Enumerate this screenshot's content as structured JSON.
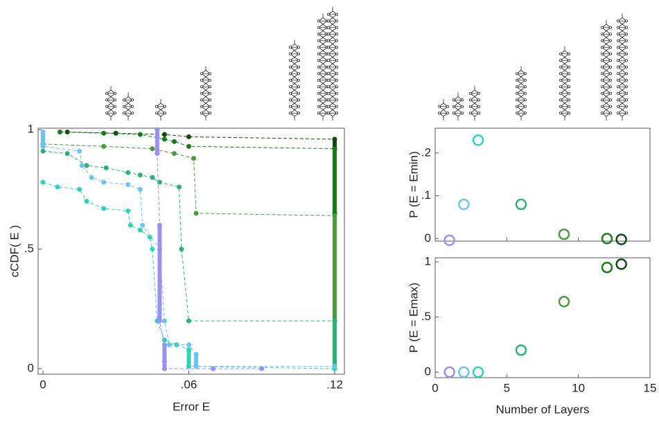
{
  "chart_data": [
    {
      "type": "line",
      "ylabel": "cCDF( E )",
      "xlabel": "Error E",
      "xlim": [
        -0.002,
        0.124
      ],
      "ylim": [
        -0.023,
        1.006
      ],
      "xticks": [
        0,
        {
          "value": 0.06,
          "label": ".06"
        },
        {
          "value": 0.12,
          "label": ".12"
        }
      ],
      "yticks": [
        0,
        {
          "value": 0.5,
          "label": ".5"
        },
        1
      ],
      "series": [
        {
          "color": "#0e4a0e",
          "x": [
            0.01,
            0.03,
            0.05,
            0.06,
            0.12,
            0.12
          ],
          "values": [
            0.99,
            0.985,
            0.98,
            0.97,
            0.96,
            0.92
          ]
        },
        {
          "color": "#1a7a1a",
          "x": [
            0.007,
            0.025,
            0.04,
            0.05,
            0.054,
            0.06,
            0.12,
            0.12
          ],
          "values": [
            0.99,
            0.985,
            0.98,
            0.96,
            0.95,
            0.93,
            0.92,
            0.65
          ]
        },
        {
          "color": "#4a9a40",
          "x": [
            0,
            0.025,
            0.045,
            0.054,
            0.062,
            0.063,
            0.12,
            0.12
          ],
          "values": [
            0.94,
            0.93,
            0.92,
            0.9,
            0.88,
            0.65,
            0.64,
            0.2
          ]
        },
        {
          "color": "#2eb07a",
          "x": [
            0,
            0.01,
            0.018,
            0.026,
            0.035,
            0.04,
            0.045,
            0.048,
            0.056,
            0.057,
            0.06,
            0.12,
            0.12
          ],
          "values": [
            0.91,
            0.9,
            0.85,
            0.84,
            0.82,
            0.81,
            0.8,
            0.78,
            0.76,
            0.5,
            0.2,
            0.2,
            0.0
          ]
        },
        {
          "color": "#2fd4b8",
          "x": [
            0,
            0.006,
            0.015,
            0.018,
            0.025,
            0.035,
            0.036,
            0.04,
            0.044,
            0.045,
            0.047,
            0.05,
            0.055,
            0.06,
            0.06,
            0.12
          ],
          "values": [
            0.78,
            0.76,
            0.75,
            0.7,
            0.67,
            0.66,
            0.6,
            0.58,
            0.55,
            0.5,
            0.2,
            0.12,
            0.1,
            0.08,
            0.01,
            0.0
          ]
        },
        {
          "color": "#6cc5f0",
          "x": [
            0,
            0,
            0.015,
            0.016,
            0.02,
            0.025,
            0.035,
            0.04,
            0.041,
            0.048,
            0.05,
            0.052,
            0.06,
            0.063,
            0.063,
            0.12
          ],
          "values": [
            0.99,
            0.93,
            0.91,
            0.85,
            0.8,
            0.78,
            0.77,
            0.75,
            0.6,
            0.5,
            0.2,
            0.1,
            0.1,
            0.06,
            0.01,
            0.01
          ]
        },
        {
          "color": "#9b8ff0",
          "x": [
            0.047,
            0.047,
            0.048,
            0.048,
            0.05,
            0.05,
            0.05,
            0.07,
            0.09
          ],
          "values": [
            1.0,
            0.9,
            0.6,
            0.2,
            0.1,
            0.03,
            0.0,
            0.0,
            0.0
          ]
        }
      ]
    },
    {
      "type": "scatter",
      "ylabel": "P (E = Emin)",
      "xlim": [
        0,
        15
      ],
      "ylim": [
        -0.006,
        0.258
      ],
      "xticks": [
        0,
        5,
        10,
        15
      ],
      "yticks": [
        0,
        {
          "value": 0.1,
          "label": ".1"
        },
        {
          "value": 0.2,
          "label": ".2"
        }
      ],
      "x": [
        1,
        2,
        3,
        6,
        9,
        12,
        13
      ],
      "values": [
        -0.004,
        0.08,
        0.23,
        0.08,
        0.01,
        0.0,
        -0.002
      ],
      "colors": [
        "#9b8ff0",
        "#6cc5f0",
        "#2fd4b8",
        "#2eb07a",
        "#4a9a40",
        "#1a7a1a",
        "#0e4a0e"
      ]
    },
    {
      "type": "scatter",
      "ylabel": "P (E = Emax)",
      "xlabel": "Number of Layers",
      "xlim": [
        0,
        15
      ],
      "ylim": [
        -0.05,
        1.038
      ],
      "xticks": [
        0,
        5,
        10,
        15
      ],
      "yticks": [
        0,
        {
          "value": 0.5,
          "label": ".5"
        },
        1
      ],
      "x": [
        1,
        2,
        3,
        6,
        9,
        12,
        13
      ],
      "values": [
        0.0,
        0.0,
        0.0,
        0.2,
        0.64,
        0.95,
        0.98
      ],
      "colors": [
        "#9b8ff0",
        "#6cc5f0",
        "#2fd4b8",
        "#2eb07a",
        "#4a9a40",
        "#1a7a1a",
        "#0e4a0e"
      ]
    }
  ]
}
